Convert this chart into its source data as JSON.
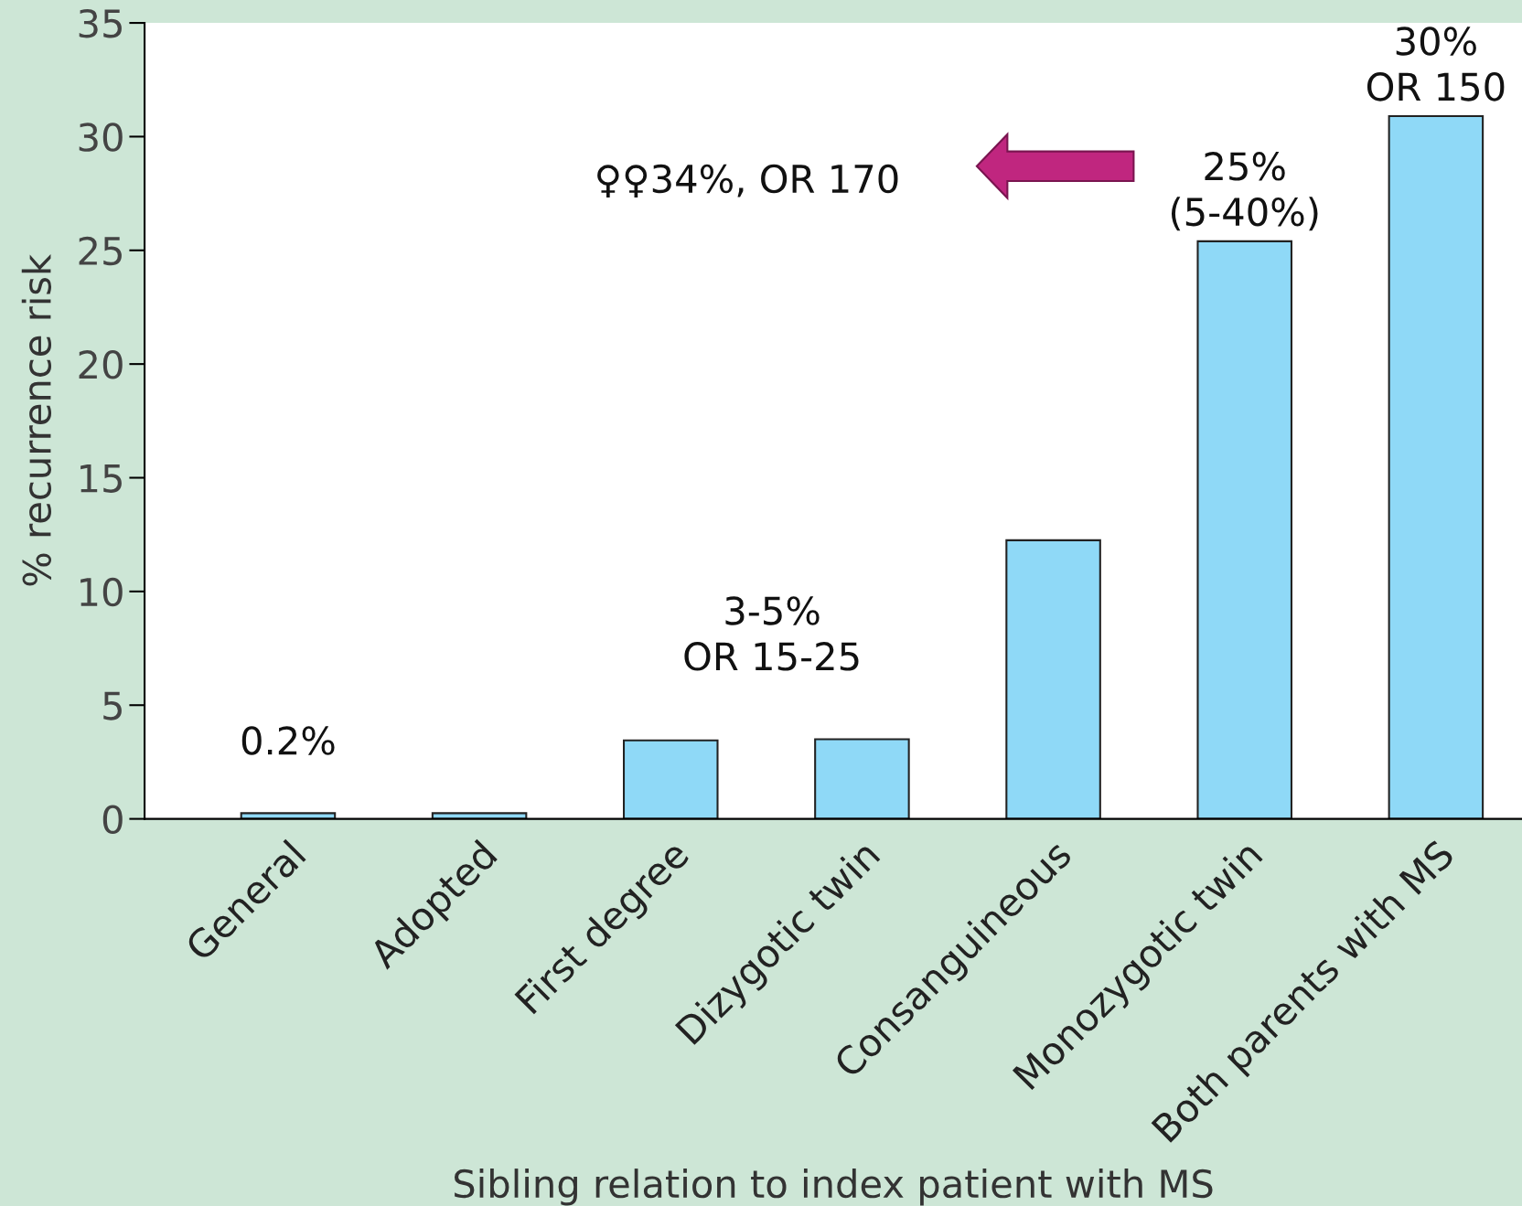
{
  "chart_data": {
    "type": "bar",
    "xlabel": "Sibling relation to index patient with MS",
    "ylabel": "% recurrence risk",
    "categories": [
      "General",
      "Adopted",
      "First degree",
      "Dizygotic twin",
      "Consanguineous",
      "Monozygotic twin",
      "Both parents with MS"
    ],
    "values": [
      0.25,
      0.25,
      3.45,
      3.5,
      12.25,
      25.4,
      30.9
    ],
    "color": "#8fd9f7",
    "ylim": [
      0,
      35
    ],
    "yticks": [
      0,
      5,
      10,
      15,
      20,
      25,
      30,
      35
    ],
    "grid": false,
    "annotations": [
      {
        "text": "0.2%",
        "x": "General",
        "y": 0.25
      },
      "3-5%\nOR 15-25",
      {
        "text": "25%\n(5-40%)",
        "x": "Monozygotic twin",
        "y": 25.4
      },
      {
        "text": "30%\nOR 150",
        "x": "Both parents with MS",
        "y": 30.9
      },
      "♀♀34%, OR 170"
    ]
  }
}
